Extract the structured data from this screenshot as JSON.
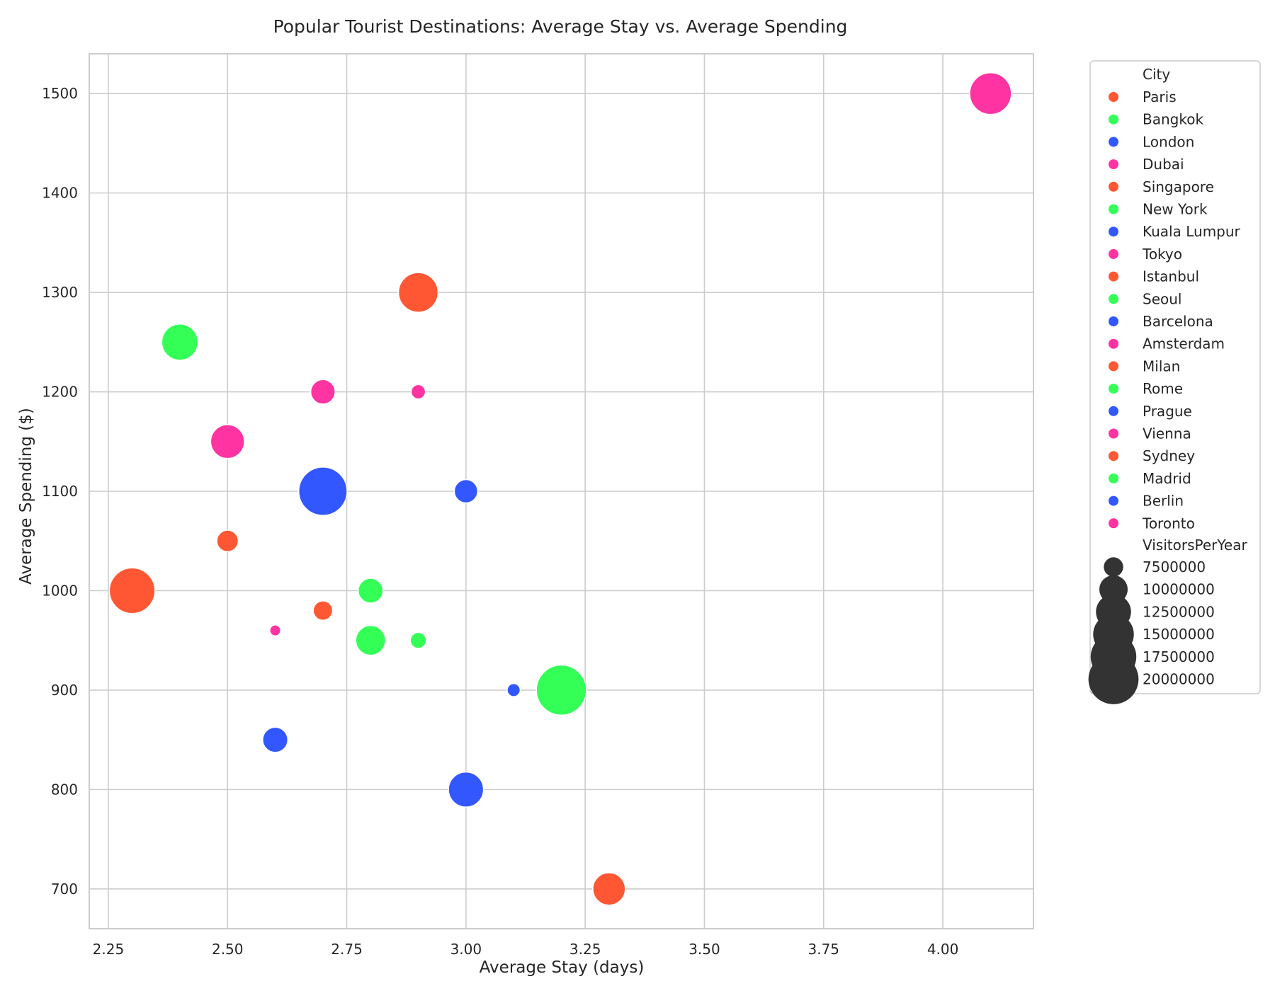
{
  "chart_data": {
    "type": "scatter",
    "title": "Popular Tourist Destinations: Average Stay vs. Average Spending",
    "xlabel": "Average Stay (days)",
    "ylabel": "Average Spending ($)",
    "xlim": [
      2.21,
      4.19
    ],
    "ylim": [
      660,
      1540
    ],
    "xticks": [
      2.25,
      2.5,
      2.75,
      3.0,
      3.25,
      3.5,
      3.75,
      4.0
    ],
    "xtick_labels": [
      "2.25",
      "2.50",
      "2.75",
      "3.00",
      "3.25",
      "3.50",
      "3.75",
      "4.00"
    ],
    "yticks": [
      700,
      800,
      900,
      1000,
      1100,
      1200,
      1300,
      1400,
      1500
    ],
    "ytick_labels": [
      "700",
      "800",
      "900",
      "1000",
      "1100",
      "1200",
      "1300",
      "1400",
      "1500"
    ],
    "grid": true,
    "legend_position": "outside-right",
    "hue_title": "City",
    "size_title": "VisitorsPerYear",
    "size_range": [
      6000000,
      20000000
    ],
    "colors": [
      "#ff5733",
      "#33ff57",
      "#3357ff",
      "#ff33a1"
    ],
    "size_legend_color": "#333333",
    "size_legend": [
      {
        "label": "7500000",
        "value": 7500000
      },
      {
        "label": "10000000",
        "value": 10000000
      },
      {
        "label": "12500000",
        "value": 12500000
      },
      {
        "label": "15000000",
        "value": 15000000
      },
      {
        "label": "17500000",
        "value": 17500000
      },
      {
        "label": "20000000",
        "value": 20000000
      }
    ],
    "points": [
      {
        "city": "Paris",
        "x": 2.3,
        "y": 1000,
        "visitors": 17500000,
        "color": "#ff5733"
      },
      {
        "city": "Bangkok",
        "x": 3.2,
        "y": 900,
        "visitors": 20000000,
        "color": "#33ff57"
      },
      {
        "city": "London",
        "x": 2.7,
        "y": 1100,
        "visitors": 19000000,
        "color": "#3357ff"
      },
      {
        "city": "Dubai",
        "x": 4.1,
        "y": 1500,
        "visitors": 15500000,
        "color": "#ff33a1"
      },
      {
        "city": "Singapore",
        "x": 2.9,
        "y": 1300,
        "visitors": 14500000,
        "color": "#ff5733"
      },
      {
        "city": "New York",
        "x": 2.4,
        "y": 1250,
        "visitors": 13000000,
        "color": "#33ff57"
      },
      {
        "city": "Kuala Lumpur",
        "x": 3.0,
        "y": 800,
        "visitors": 12500000,
        "color": "#3357ff"
      },
      {
        "city": "Tokyo",
        "x": 2.5,
        "y": 1150,
        "visitors": 12000000,
        "color": "#ff33a1"
      },
      {
        "city": "Istanbul",
        "x": 3.3,
        "y": 700,
        "visitors": 11500000,
        "color": "#ff5733"
      },
      {
        "city": "Seoul",
        "x": 2.8,
        "y": 950,
        "visitors": 10500000,
        "color": "#33ff57"
      },
      {
        "city": "Barcelona",
        "x": 2.6,
        "y": 850,
        "visitors": 9000000,
        "color": "#3357ff"
      },
      {
        "city": "Amsterdam",
        "x": 2.7,
        "y": 1200,
        "visitors": 8800000,
        "color": "#ff33a1"
      },
      {
        "city": "Milan",
        "x": 2.5,
        "y": 1050,
        "visitors": 8000000,
        "color": "#ff5733"
      },
      {
        "city": "Rome",
        "x": 2.8,
        "y": 1000,
        "visitors": 8900000,
        "color": "#33ff57"
      },
      {
        "city": "Prague",
        "x": 3.0,
        "y": 1100,
        "visitors": 8500000,
        "color": "#3357ff"
      },
      {
        "city": "Vienna",
        "x": 2.9,
        "y": 1200,
        "visitors": 6500000,
        "color": "#ff33a1"
      },
      {
        "city": "Sydney",
        "x": 2.7,
        "y": 980,
        "visitors": 7500000,
        "color": "#ff5733"
      },
      {
        "city": "Madrid",
        "x": 2.9,
        "y": 950,
        "visitors": 6800000,
        "color": "#33ff57"
      },
      {
        "city": "Berlin",
        "x": 3.1,
        "y": 900,
        "visitors": 6300000,
        "color": "#3357ff"
      },
      {
        "city": "Toronto",
        "x": 2.6,
        "y": 960,
        "visitors": 6000000,
        "color": "#ff33a1"
      }
    ]
  }
}
